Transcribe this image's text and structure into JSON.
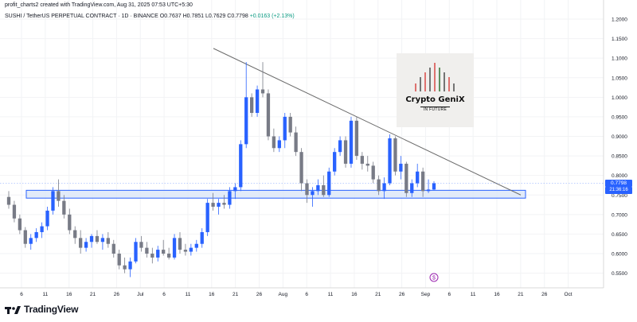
{
  "header": {
    "created_line": "profit_charts2 created with TradingView.com, Aug 31, 2025 07:53 UTC+5:30",
    "symbol": "SUSHI / TetherUS PERPETUAL CONTRACT · 1D · BINANCE",
    "open": "O0.7637",
    "high": "H0.7851",
    "low": "L0.7629",
    "close": "C0.7798",
    "change": "+0.0163 (+2.13%)"
  },
  "footer": {
    "brand": "TradingView",
    "logo_icon": "tradingview-logo-icon"
  },
  "overlay_logo": {
    "brand": "Crypto GeniX",
    "tagline": "IN FUTURE",
    "icon": "bar-chart-logo-icon"
  },
  "price_tag": {
    "price": "0.7798",
    "countdown": "21:36:16"
  },
  "colors": {
    "up": "#2962ff",
    "down": "#787b86",
    "zone_fill": "#dbe6f8",
    "zone_stroke": "#2962ff",
    "trendline": "#6b6b6b"
  },
  "chart_data": {
    "type": "candlestick",
    "ylim": [
      0.53,
      1.23
    ],
    "y_ticks": [
      "1.2000",
      "1.1500",
      "1.1000",
      "1.0500",
      "1.0000",
      "0.9500",
      "0.9000",
      "0.8500",
      "0.8000",
      "0.7500",
      "0.7000",
      "0.6500",
      "0.6000",
      "0.5500"
    ],
    "x_ticks": [
      "6",
      "11",
      "16",
      "21",
      "26",
      "Jul",
      "6",
      "11",
      "16",
      "21",
      "26",
      "Aug",
      "6",
      "11",
      "16",
      "21",
      "26",
      "Sep",
      "6",
      "11",
      "16",
      "21",
      "26",
      "Oct"
    ],
    "candles": [
      [
        0.745,
        0.76,
        0.715,
        0.725
      ],
      [
        0.725,
        0.735,
        0.68,
        0.69
      ],
      [
        0.69,
        0.7,
        0.65,
        0.66
      ],
      [
        0.66,
        0.668,
        0.615,
        0.625
      ],
      [
        0.625,
        0.65,
        0.61,
        0.64
      ],
      [
        0.64,
        0.665,
        0.63,
        0.655
      ],
      [
        0.655,
        0.68,
        0.64,
        0.67
      ],
      [
        0.67,
        0.72,
        0.66,
        0.71
      ],
      [
        0.71,
        0.77,
        0.7,
        0.76
      ],
      [
        0.76,
        0.79,
        0.72,
        0.735
      ],
      [
        0.735,
        0.75,
        0.69,
        0.7
      ],
      [
        0.7,
        0.715,
        0.65,
        0.66
      ],
      [
        0.66,
        0.67,
        0.625,
        0.64
      ],
      [
        0.64,
        0.66,
        0.6,
        0.615
      ],
      [
        0.615,
        0.64,
        0.605,
        0.63
      ],
      [
        0.63,
        0.65,
        0.615,
        0.645
      ],
      [
        0.645,
        0.66,
        0.625,
        0.63
      ],
      [
        0.63,
        0.65,
        0.61,
        0.64
      ],
      [
        0.64,
        0.655,
        0.615,
        0.625
      ],
      [
        0.625,
        0.635,
        0.59,
        0.6
      ],
      [
        0.6,
        0.61,
        0.56,
        0.57
      ],
      [
        0.57,
        0.59,
        0.55,
        0.56
      ],
      [
        0.56,
        0.59,
        0.54,
        0.58
      ],
      [
        0.58,
        0.64,
        0.575,
        0.63
      ],
      [
        0.63,
        0.645,
        0.605,
        0.615
      ],
      [
        0.615,
        0.63,
        0.59,
        0.6
      ],
      [
        0.6,
        0.615,
        0.575,
        0.59
      ],
      [
        0.59,
        0.62,
        0.58,
        0.61
      ],
      [
        0.61,
        0.635,
        0.595,
        0.6
      ],
      [
        0.6,
        0.615,
        0.585,
        0.59
      ],
      [
        0.59,
        0.65,
        0.585,
        0.64
      ],
      [
        0.64,
        0.655,
        0.6,
        0.61
      ],
      [
        0.61,
        0.625,
        0.595,
        0.605
      ],
      [
        0.605,
        0.625,
        0.595,
        0.615
      ],
      [
        0.615,
        0.635,
        0.605,
        0.625
      ],
      [
        0.625,
        0.665,
        0.615,
        0.655
      ],
      [
        0.655,
        0.74,
        0.645,
        0.73
      ],
      [
        0.73,
        0.755,
        0.71,
        0.72
      ],
      [
        0.72,
        0.74,
        0.7,
        0.73
      ],
      [
        0.73,
        0.75,
        0.715,
        0.725
      ],
      [
        0.725,
        0.77,
        0.715,
        0.76
      ],
      [
        0.76,
        0.78,
        0.74,
        0.77
      ],
      [
        0.77,
        0.89,
        0.76,
        0.88
      ],
      [
        0.88,
        1.09,
        0.87,
        1.0
      ],
      [
        1.0,
        1.01,
        0.95,
        0.96
      ],
      [
        0.96,
        1.03,
        0.95,
        1.02
      ],
      [
        1.02,
        1.09,
        1.0,
        1.01
      ],
      [
        1.01,
        1.02,
        0.89,
        0.9
      ],
      [
        0.9,
        0.92,
        0.86,
        0.87
      ],
      [
        0.87,
        0.9,
        0.86,
        0.89
      ],
      [
        0.89,
        0.96,
        0.87,
        0.95
      ],
      [
        0.95,
        0.96,
        0.9,
        0.91
      ],
      [
        0.91,
        0.925,
        0.85,
        0.86
      ],
      [
        0.86,
        0.87,
        0.76,
        0.78
      ],
      [
        0.78,
        0.79,
        0.73,
        0.75
      ],
      [
        0.75,
        0.77,
        0.72,
        0.76
      ],
      [
        0.76,
        0.79,
        0.75,
        0.775
      ],
      [
        0.775,
        0.8,
        0.745,
        0.75
      ],
      [
        0.75,
        0.82,
        0.745,
        0.81
      ],
      [
        0.81,
        0.87,
        0.8,
        0.86
      ],
      [
        0.86,
        0.9,
        0.85,
        0.89
      ],
      [
        0.89,
        0.9,
        0.82,
        0.83
      ],
      [
        0.83,
        0.95,
        0.82,
        0.94
      ],
      [
        0.94,
        0.95,
        0.84,
        0.85
      ],
      [
        0.85,
        0.86,
        0.815,
        0.83
      ],
      [
        0.83,
        0.85,
        0.81,
        0.825
      ],
      [
        0.825,
        0.835,
        0.78,
        0.79
      ],
      [
        0.79,
        0.8,
        0.75,
        0.76
      ],
      [
        0.76,
        0.795,
        0.74,
        0.78
      ],
      [
        0.78,
        0.905,
        0.775,
        0.895
      ],
      [
        0.895,
        0.9,
        0.8,
        0.81
      ],
      [
        0.81,
        0.85,
        0.79,
        0.83
      ],
      [
        0.83,
        0.835,
        0.745,
        0.755
      ],
      [
        0.755,
        0.79,
        0.745,
        0.78
      ],
      [
        0.78,
        0.83,
        0.77,
        0.81
      ],
      [
        0.81,
        0.82,
        0.745,
        0.76
      ],
      [
        0.76,
        0.79,
        0.755,
        0.764
      ],
      [
        0.764,
        0.785,
        0.763,
        0.78
      ]
    ],
    "trendline": {
      "from": [
        0.0,
        1.125
      ],
      "to": [
        1.0,
        0.75
      ]
    },
    "support_zone": [
      0.742,
      0.762
    ]
  }
}
